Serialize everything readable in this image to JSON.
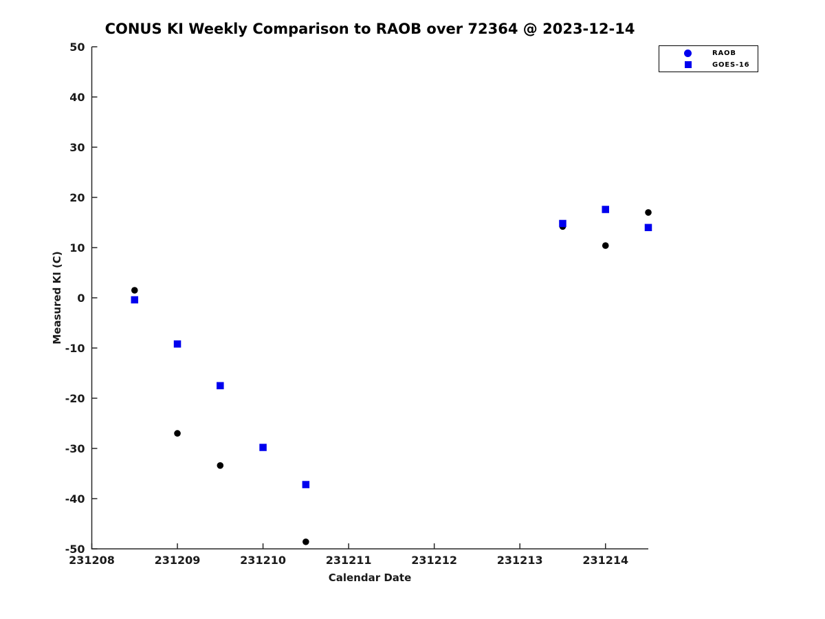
{
  "title": "CONUS KI Weekly Comparison to RAOB over 72364 @ 2023-12-14",
  "chart_data": {
    "type": "scatter",
    "title": "CONUS KI Weekly Comparison to RAOB over 72364 @ 2023-12-14",
    "xlabel": "Calendar Date",
    "ylabel": "Measured KI (C)",
    "xlim": [
      231208,
      231214.5
    ],
    "ylim": [
      -50,
      50
    ],
    "grid": false,
    "legend_position": "top-right",
    "axis_color": "#262626",
    "xticks": [
      {
        "v": 231208,
        "label": "231208"
      },
      {
        "v": 231209,
        "label": "231209"
      },
      {
        "v": 231210,
        "label": "231210"
      },
      {
        "v": 231211,
        "label": "231211"
      },
      {
        "v": 231212,
        "label": "231212"
      },
      {
        "v": 231213,
        "label": "231213"
      },
      {
        "v": 231214,
        "label": "231214"
      }
    ],
    "yticks": [
      {
        "v": -50,
        "label": "-50"
      },
      {
        "v": -40,
        "label": "-40"
      },
      {
        "v": -30,
        "label": "-30"
      },
      {
        "v": -20,
        "label": "-20"
      },
      {
        "v": -10,
        "label": "-10"
      },
      {
        "v": 0,
        "label": "0"
      },
      {
        "v": 10,
        "label": "10"
      },
      {
        "v": 20,
        "label": "20"
      },
      {
        "v": 30,
        "label": "30"
      },
      {
        "v": 40,
        "label": "40"
      },
      {
        "v": 50,
        "label": "50"
      }
    ],
    "series": [
      {
        "name": "RAOB",
        "marker": "circle",
        "color": "#000000",
        "legend_color": "#0000EE",
        "points": [
          [
            231208.5,
            1.5
          ],
          [
            231209.0,
            -27.0
          ],
          [
            231209.5,
            -33.4
          ],
          [
            231210.5,
            -48.6
          ],
          [
            231213.5,
            14.2
          ],
          [
            231214.0,
            10.4
          ],
          [
            231214.5,
            17.0
          ]
        ]
      },
      {
        "name": "GOES-16",
        "marker": "square",
        "color": "#0000EE",
        "legend_color": "#0000EE",
        "points": [
          [
            231208.5,
            -0.4
          ],
          [
            231209.0,
            -9.2
          ],
          [
            231209.5,
            -17.5
          ],
          [
            231210.0,
            -29.8
          ],
          [
            231210.5,
            -37.2
          ],
          [
            231213.5,
            14.8
          ],
          [
            231214.0,
            17.6
          ],
          [
            231214.5,
            14.0
          ]
        ]
      }
    ]
  }
}
